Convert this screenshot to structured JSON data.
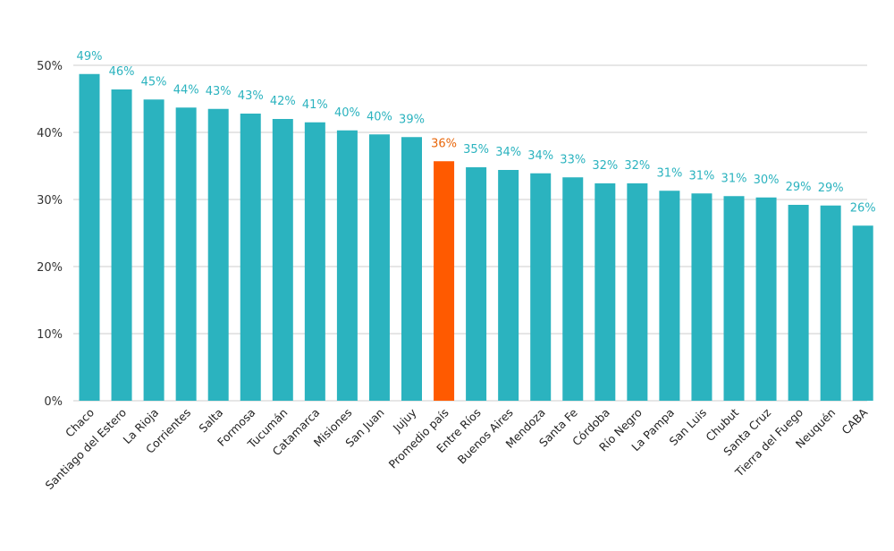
{
  "chart_data": {
    "type": "bar",
    "title": "",
    "xlabel": "",
    "ylabel": "",
    "ylim": [
      0,
      50
    ],
    "yticks": [
      "0%",
      "10%",
      "20%",
      "30%",
      "40%",
      "50%"
    ],
    "grid": true,
    "colors": {
      "default": "#2bb3bf",
      "highlight": "#ff5a00",
      "label_default": "#2bb3bf",
      "label_highlight": "#e8660a",
      "grid": "#cccccc"
    },
    "highlight_category": "Promedio país",
    "categories": [
      "Chaco",
      "Santiago del Estero",
      "La Rioja",
      "Corrientes",
      "Salta",
      "Formosa",
      "Tucumán",
      "Catamarca",
      "Misiones",
      "San Juan",
      "Jujuy",
      "Promedio país",
      "Entre Ríos",
      "Buenos Aires",
      "Mendoza",
      "Santa Fe",
      "Córdoba",
      "Río Negro",
      "La Pampa",
      "San Luis",
      "Chubut",
      "Santa Cruz",
      "Tierra del Fuego",
      "Neuquén",
      "CABA"
    ],
    "values": [
      48.7,
      46.4,
      44.9,
      43.7,
      43.5,
      42.8,
      42.0,
      41.5,
      40.3,
      39.7,
      39.3,
      35.7,
      34.8,
      34.4,
      33.9,
      33.3,
      32.4,
      32.4,
      31.3,
      30.9,
      30.5,
      30.3,
      29.2,
      29.1,
      26.1
    ],
    "data_labels": [
      "49%",
      "46%",
      "45%",
      "44%",
      "43%",
      "43%",
      "42%",
      "41%",
      "40%",
      "40%",
      "39%",
      "36%",
      "35%",
      "34%",
      "34%",
      "33%",
      "32%",
      "32%",
      "31%",
      "31%",
      "31%",
      "30%",
      "29%",
      "29%",
      "26%"
    ]
  }
}
